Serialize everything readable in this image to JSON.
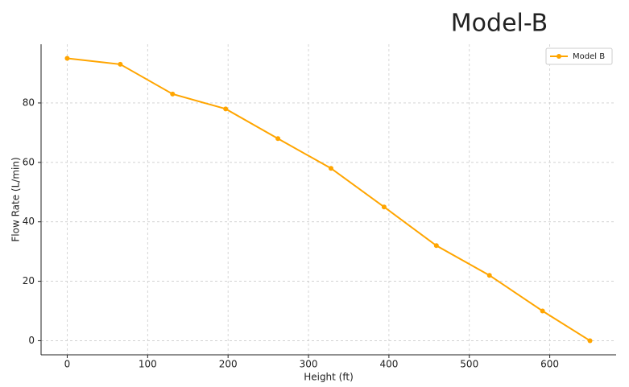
{
  "chart_data": {
    "type": "line",
    "title": "Model-B",
    "x_label": "Height (ft)",
    "y_label": "Flow Rate (L/min)",
    "x": [
      0,
      66,
      131,
      197,
      262,
      328,
      394,
      459,
      525,
      591,
      650
    ],
    "series": [
      {
        "name": "Model B",
        "color": "#ffa500",
        "values": [
          95,
          93,
          83,
          78,
          68,
          58,
          45,
          32,
          22,
          10,
          0
        ]
      }
    ],
    "xlim": [
      -32.5,
      682.5
    ],
    "xticks": [
      0,
      100,
      200,
      300,
      400,
      500,
      600
    ],
    "ylim": [
      -4.75,
      99.75
    ],
    "yticks": [
      0,
      20,
      40,
      60,
      80
    ],
    "grid": true,
    "legend": "upper right"
  }
}
